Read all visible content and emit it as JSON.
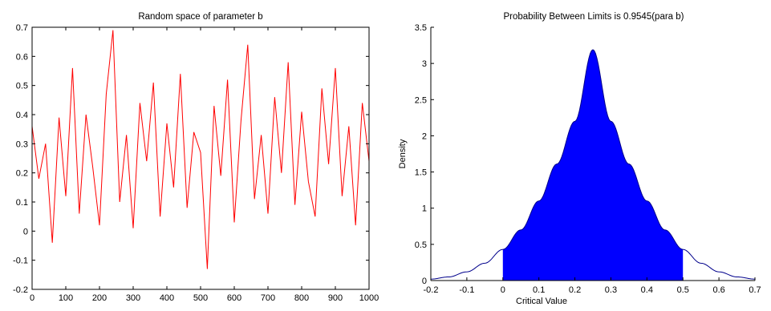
{
  "chart_data": [
    {
      "type": "line",
      "title": "Random space of parameter b",
      "xlabel": "",
      "ylabel": "",
      "xlim": [
        0,
        1000
      ],
      "ylim": [
        -0.2,
        0.7
      ],
      "x_ticks": [
        0,
        100,
        200,
        300,
        400,
        500,
        600,
        700,
        800,
        900,
        1000
      ],
      "y_ticks": [
        -0.2,
        -0.1,
        0,
        0.1,
        0.2,
        0.3,
        0.4,
        0.5,
        0.6,
        0.7
      ],
      "x_tick_labels": [
        "0",
        "100",
        "200",
        "300",
        "400",
        "500",
        "600",
        "700",
        "800",
        "900",
        "1000"
      ],
      "y_tick_labels": [
        "-0.2",
        "-0.1",
        "0",
        "0.1",
        "0.2",
        "0.3",
        "0.4",
        "0.5",
        "0.6",
        "0.7"
      ],
      "grid": false,
      "line_color": "#ff0000",
      "series": [
        {
          "x": [
            0,
            20,
            40,
            60,
            80,
            100,
            120,
            140,
            160,
            180,
            200,
            220,
            240,
            260,
            280,
            300,
            320,
            340,
            360,
            380,
            400,
            420,
            440,
            460,
            480,
            500,
            520,
            540,
            560,
            580,
            600,
            620,
            640,
            660,
            680,
            700,
            720,
            740,
            760,
            780,
            800,
            820,
            840,
            860,
            880,
            900,
            920,
            940,
            960,
            980,
            1000
          ],
          "y": [
            0.36,
            0.18,
            0.3,
            -0.04,
            0.39,
            0.12,
            0.56,
            0.06,
            0.4,
            0.22,
            0.02,
            0.47,
            0.69,
            0.1,
            0.33,
            0.01,
            0.44,
            0.24,
            0.51,
            0.05,
            0.37,
            0.15,
            0.54,
            0.08,
            0.34,
            0.27,
            -0.13,
            0.43,
            0.19,
            0.52,
            0.03,
            0.38,
            0.64,
            0.11,
            0.33,
            0.06,
            0.46,
            0.2,
            0.58,
            0.09,
            0.41,
            0.17,
            0.05,
            0.49,
            0.23,
            0.56,
            0.12,
            0.36,
            0.02,
            0.44,
            0.24
          ]
        }
      ]
    },
    {
      "type": "area",
      "title": "Probability Between Limits is 0.9545(para b)",
      "xlabel": "Critical Value",
      "ylabel": "Density",
      "xlim": [
        -0.2,
        0.7
      ],
      "ylim": [
        0,
        3.5
      ],
      "x_ticks": [
        -0.2,
        -0.1,
        0,
        0.1,
        0.2,
        0.3,
        0.4,
        0.5,
        0.6,
        0.7
      ],
      "y_ticks": [
        0,
        0.5,
        1,
        1.5,
        2,
        2.5,
        3,
        3.5
      ],
      "x_tick_labels": [
        "-0.2",
        "-0.1",
        "0",
        "0.1",
        "0.2",
        "0.3",
        "0.4",
        "0.5",
        "0.6",
        "0.7"
      ],
      "y_tick_labels": [
        "0",
        "0.5",
        "1",
        "1.5",
        "2",
        "2.5",
        "3",
        "3.5"
      ],
      "grid": false,
      "fill_color": "#0000ff",
      "curve_color": "#00008b",
      "shaded_range": [
        0,
        0.5
      ],
      "series": [
        {
          "x": [
            -0.2,
            -0.15,
            -0.1,
            -0.05,
            0,
            0.05,
            0.1,
            0.15,
            0.2,
            0.25,
            0.3,
            0.35,
            0.4,
            0.45,
            0.5,
            0.55,
            0.6,
            0.65,
            0.7
          ],
          "y": [
            0.02,
            0.05,
            0.12,
            0.24,
            0.43,
            0.7,
            1.1,
            1.61,
            2.2,
            3.19,
            2.2,
            1.61,
            1.1,
            0.7,
            0.43,
            0.24,
            0.12,
            0.05,
            0.02
          ]
        }
      ]
    }
  ]
}
